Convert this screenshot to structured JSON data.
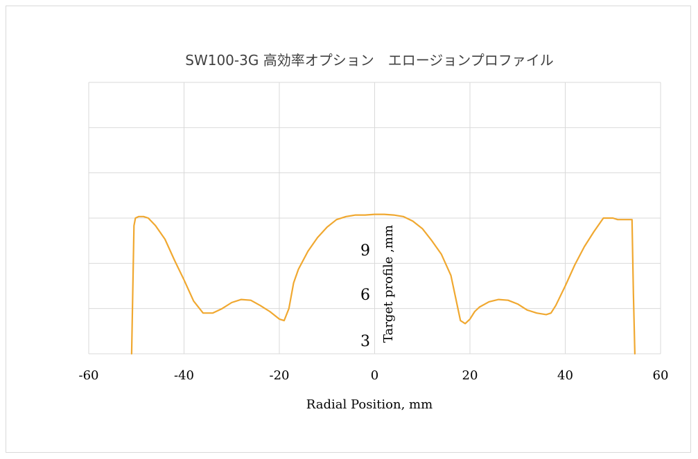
{
  "chart_data": {
    "type": "line",
    "title": "SW100-3G 高効率オプション　エロージョンプロファイル",
    "xlabel": "Radial Position, mm",
    "ylabel": "Target profile ,mm",
    "xlim": [
      -60,
      60
    ],
    "ylim": [
      0,
      18
    ],
    "x_ticks": [
      -60,
      -40,
      -20,
      0,
      20,
      40,
      60
    ],
    "x_tick_labels": [
      "-60",
      "-40",
      "-20",
      "0",
      "20",
      "40",
      "60"
    ],
    "y_ticks": [
      3,
      6,
      9
    ],
    "y_tick_labels": [
      "3",
      "6",
      "9"
    ],
    "grid": true,
    "color": "#f0a830",
    "series": [
      {
        "x": [
          -51,
          -50.5,
          -50.2,
          -49.5,
          -48.5,
          -47.5,
          -46,
          -44,
          -42,
          -40,
          -38,
          -36,
          -34,
          -32,
          -30,
          -28,
          -26,
          -24,
          -22,
          -20,
          -19,
          -18,
          -17,
          -16,
          -14,
          -12,
          -10,
          -8,
          -6,
          -4,
          -2,
          0,
          2,
          4,
          6,
          8,
          10,
          12,
          14,
          16,
          17,
          18,
          19,
          20,
          21,
          22,
          24,
          26,
          28,
          30,
          32,
          34,
          36,
          37,
          38,
          40,
          42,
          44,
          46,
          48,
          49,
          50,
          51,
          54,
          54.3,
          54.6
        ],
        "y": [
          0,
          8.5,
          9.0,
          9.1,
          9.1,
          9.0,
          8.5,
          7.6,
          6.2,
          4.9,
          3.5,
          2.7,
          2.7,
          3.0,
          3.4,
          3.6,
          3.55,
          3.2,
          2.8,
          2.3,
          2.2,
          3.0,
          4.7,
          5.6,
          6.8,
          7.7,
          8.4,
          8.9,
          9.1,
          9.2,
          9.2,
          9.25,
          9.25,
          9.2,
          9.1,
          8.8,
          8.3,
          7.5,
          6.6,
          5.2,
          3.7,
          2.2,
          2.0,
          2.3,
          2.8,
          3.1,
          3.45,
          3.6,
          3.55,
          3.3,
          2.9,
          2.7,
          2.6,
          2.7,
          3.2,
          4.5,
          5.9,
          7.1,
          8.1,
          9.0,
          9.0,
          9.0,
          8.9,
          8.9,
          4.0,
          0
        ]
      }
    ]
  }
}
